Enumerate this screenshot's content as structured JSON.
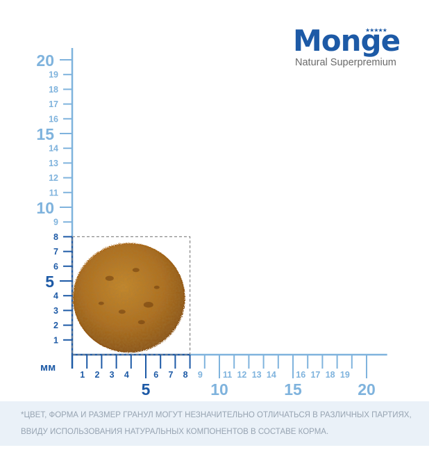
{
  "brand": {
    "name": "Monge",
    "tagline": "Natural Superpremium"
  },
  "scale": {
    "unit_label": "мм",
    "y_ticks": [
      {
        "value": 1,
        "label": "1",
        "style": "small-dark"
      },
      {
        "value": 2,
        "label": "2",
        "style": "small-dark"
      },
      {
        "value": 3,
        "label": "3",
        "style": "small-dark"
      },
      {
        "value": 4,
        "label": "4",
        "style": "small-dark"
      },
      {
        "value": 5,
        "label": "5",
        "style": "major-dark"
      },
      {
        "value": 6,
        "label": "6",
        "style": "small-dark"
      },
      {
        "value": 7,
        "label": "7",
        "style": "small-dark"
      },
      {
        "value": 8,
        "label": "8",
        "style": "small-dark"
      },
      {
        "value": 9,
        "label": "9",
        "style": "small-light"
      },
      {
        "value": 10,
        "label": "10",
        "style": "major-light"
      },
      {
        "value": 11,
        "label": "11",
        "style": "small-light"
      },
      {
        "value": 12,
        "label": "12",
        "style": "small-light"
      },
      {
        "value": 13,
        "label": "13",
        "style": "small-light"
      },
      {
        "value": 14,
        "label": "14",
        "style": "small-light"
      },
      {
        "value": 15,
        "label": "15",
        "style": "major-light"
      },
      {
        "value": 16,
        "label": "16",
        "style": "small-light"
      },
      {
        "value": 17,
        "label": "17",
        "style": "small-light"
      },
      {
        "value": 18,
        "label": "18",
        "style": "small-light"
      },
      {
        "value": 19,
        "label": "19",
        "style": "small-light"
      },
      {
        "value": 20,
        "label": "20",
        "style": "major-light"
      }
    ],
    "x_ticks": [
      {
        "value": 1,
        "label": "1",
        "style": "small-dark"
      },
      {
        "value": 2,
        "label": "2",
        "style": "small-dark"
      },
      {
        "value": 3,
        "label": "3",
        "style": "small-dark"
      },
      {
        "value": 4,
        "label": "4",
        "style": "small-dark"
      },
      {
        "value": 5,
        "label": "5",
        "style": "major-dark"
      },
      {
        "value": 6,
        "label": "6",
        "style": "small-dark"
      },
      {
        "value": 7,
        "label": "7",
        "style": "small-dark"
      },
      {
        "value": 8,
        "label": "8",
        "style": "small-dark"
      },
      {
        "value": 9,
        "label": "9",
        "style": "small-light"
      },
      {
        "value": 10,
        "label": "10",
        "style": "major-light"
      },
      {
        "value": 11,
        "label": "11",
        "style": "small-light"
      },
      {
        "value": 12,
        "label": "12",
        "style": "small-light"
      },
      {
        "value": 13,
        "label": "13",
        "style": "small-light"
      },
      {
        "value": 14,
        "label": "14",
        "style": "small-light"
      },
      {
        "value": 15,
        "label": "15",
        "style": "major-light"
      },
      {
        "value": 16,
        "label": "16",
        "style": "small-light"
      },
      {
        "value": 17,
        "label": "17",
        "style": "small-light"
      },
      {
        "value": 18,
        "label": "18",
        "style": "small-light"
      },
      {
        "value": 19,
        "label": "19",
        "style": "small-light"
      },
      {
        "value": 20,
        "label": "20",
        "style": "major-light"
      }
    ],
    "kibble_size_mm": {
      "width": 8,
      "height": 8
    },
    "colors": {
      "dark_blue": "#1d5aa6",
      "light_blue": "#7fb3dd",
      "kibble": "#b7751f",
      "frame": "#8a8a8a"
    }
  },
  "footnote": {
    "line1": "*ЦВЕТ, ФОРМА И РАЗМЕР ГРАНУЛ МОГУТ НЕЗНАЧИТЕЛЬНО ОТЛИЧАТЬСЯ В РАЗЛИЧНЫХ ПАРТИЯХ,",
    "line2": "ВВИДУ ИСПОЛЬЗОВАНИЯ НАТУРАЛЬНЫХ КОМПОНЕНТОВ В СОСТАВЕ КОРМА."
  }
}
